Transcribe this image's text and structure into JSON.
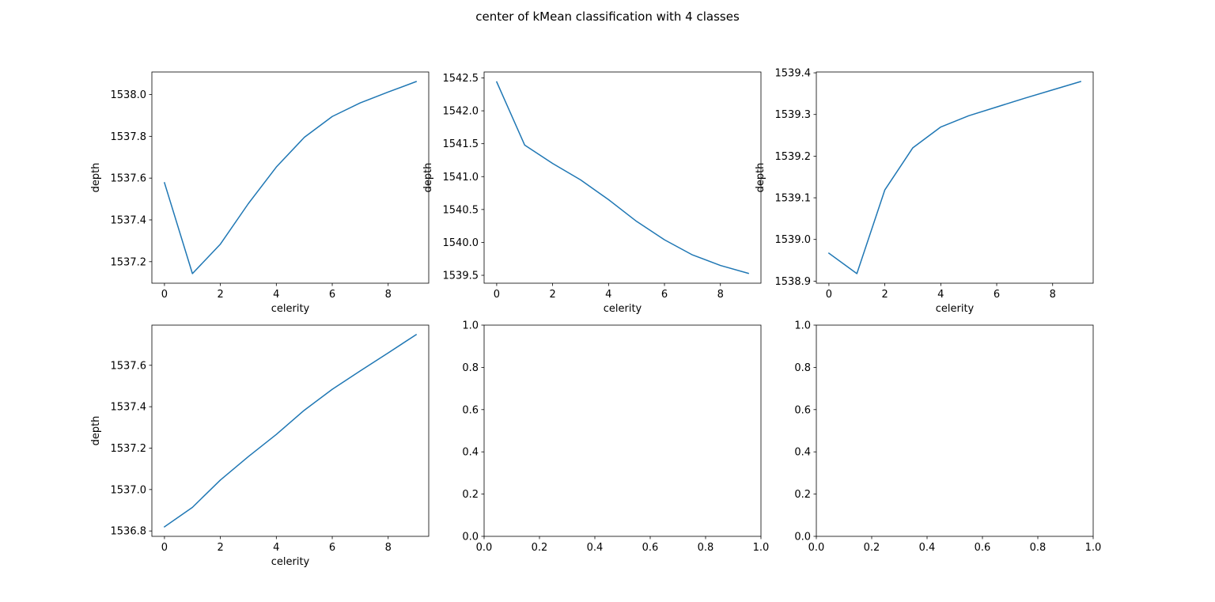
{
  "figure": {
    "title": "center of kMean classification with 4 classes",
    "line_color": "#1f77b4"
  },
  "chart_data": [
    {
      "type": "line",
      "xlabel": "celerity",
      "ylabel": "depth",
      "x": [
        0,
        1,
        2,
        3,
        4,
        5,
        6,
        7,
        8,
        9
      ],
      "values": [
        1537.578,
        1537.143,
        1537.284,
        1537.478,
        1537.653,
        1537.795,
        1537.895,
        1537.96,
        1538.012,
        1538.062
      ],
      "xlim": [
        -0.45,
        9.45
      ],
      "ylim": [
        1537.097,
        1538.108
      ],
      "xticks": [
        0,
        2,
        4,
        6,
        8
      ],
      "yticks": [
        1537.2,
        1537.4,
        1537.6,
        1537.8,
        1538.0
      ],
      "xtick_labels": [
        "0",
        "2",
        "4",
        "6",
        "8"
      ],
      "ytick_labels": [
        "1537.2",
        "1537.4",
        "1537.6",
        "1537.8",
        "1538.0"
      ]
    },
    {
      "type": "line",
      "xlabel": "celerity",
      "ylabel": "depth",
      "x": [
        0,
        1,
        2,
        3,
        4,
        5,
        6,
        7,
        8,
        9
      ],
      "values": [
        1542.44,
        1541.48,
        1541.2,
        1540.95,
        1540.65,
        1540.32,
        1540.04,
        1539.81,
        1539.65,
        1539.53
      ],
      "xlim": [
        -0.45,
        9.45
      ],
      "ylim": [
        1539.38,
        1542.59
      ],
      "xticks": [
        0,
        2,
        4,
        6,
        8
      ],
      "yticks": [
        1539.5,
        1540.0,
        1540.5,
        1541.0,
        1541.5,
        1542.0,
        1542.5
      ],
      "xtick_labels": [
        "0",
        "2",
        "4",
        "6",
        "8"
      ],
      "ytick_labels": [
        "1539.5",
        "1540.0",
        "1540.5",
        "1541.0",
        "1541.5",
        "1542.0",
        "1542.5"
      ]
    },
    {
      "type": "line",
      "xlabel": "celerity",
      "ylabel": "depth",
      "x": [
        0,
        1,
        2,
        3,
        4,
        5,
        6,
        7,
        8,
        9
      ],
      "values": [
        1538.967,
        1538.918,
        1539.119,
        1539.22,
        1539.27,
        1539.297,
        1539.318,
        1539.339,
        1539.359,
        1539.379
      ],
      "xlim": [
        -0.45,
        9.45
      ],
      "ylim": [
        1538.895,
        1539.402
      ],
      "xticks": [
        0,
        2,
        4,
        6,
        8
      ],
      "yticks": [
        1538.9,
        1539.0,
        1539.1,
        1539.2,
        1539.3,
        1539.4
      ],
      "xtick_labels": [
        "0",
        "2",
        "4",
        "6",
        "8"
      ],
      "ytick_labels": [
        "1538.9",
        "1539.0",
        "1539.1",
        "1539.2",
        "1539.3",
        "1539.4"
      ]
    },
    {
      "type": "line",
      "xlabel": "celerity",
      "ylabel": "depth",
      "x": [
        0,
        1,
        2,
        3,
        4,
        5,
        6,
        7,
        8,
        9
      ],
      "values": [
        1536.82,
        1536.914,
        1537.046,
        1537.159,
        1537.266,
        1537.383,
        1537.484,
        1537.573,
        1537.66,
        1537.748
      ],
      "xlim": [
        -0.45,
        9.45
      ],
      "ylim": [
        1536.774,
        1537.794
      ],
      "xticks": [
        0,
        2,
        4,
        6,
        8
      ],
      "yticks": [
        1536.8,
        1537.0,
        1537.2,
        1537.4,
        1537.6
      ],
      "xtick_labels": [
        "0",
        "2",
        "4",
        "6",
        "8"
      ],
      "ytick_labels": [
        "1536.8",
        "1537.0",
        "1537.2",
        "1537.4",
        "1537.6"
      ]
    },
    {
      "type": "line",
      "xlabel": "",
      "ylabel": "",
      "x": [],
      "values": [],
      "xlim": [
        0,
        1
      ],
      "ylim": [
        0,
        1
      ],
      "xticks": [
        0,
        0.2,
        0.4,
        0.6,
        0.8,
        1.0
      ],
      "yticks": [
        0,
        0.2,
        0.4,
        0.6,
        0.8,
        1.0
      ],
      "xtick_labels": [
        "0.0",
        "0.2",
        "0.4",
        "0.6",
        "0.8",
        "1.0"
      ],
      "ytick_labels": [
        "0.0",
        "0.2",
        "0.4",
        "0.6",
        "0.8",
        "1.0"
      ]
    },
    {
      "type": "line",
      "xlabel": "",
      "ylabel": "",
      "x": [],
      "values": [],
      "xlim": [
        0,
        1
      ],
      "ylim": [
        0,
        1
      ],
      "xticks": [
        0,
        0.2,
        0.4,
        0.6,
        0.8,
        1.0
      ],
      "yticks": [
        0,
        0.2,
        0.4,
        0.6,
        0.8,
        1.0
      ],
      "xtick_labels": [
        "0.0",
        "0.2",
        "0.4",
        "0.6",
        "0.8",
        "1.0"
      ],
      "ytick_labels": [
        "0.0",
        "0.2",
        "0.4",
        "0.6",
        "0.8",
        "1.0"
      ]
    }
  ]
}
